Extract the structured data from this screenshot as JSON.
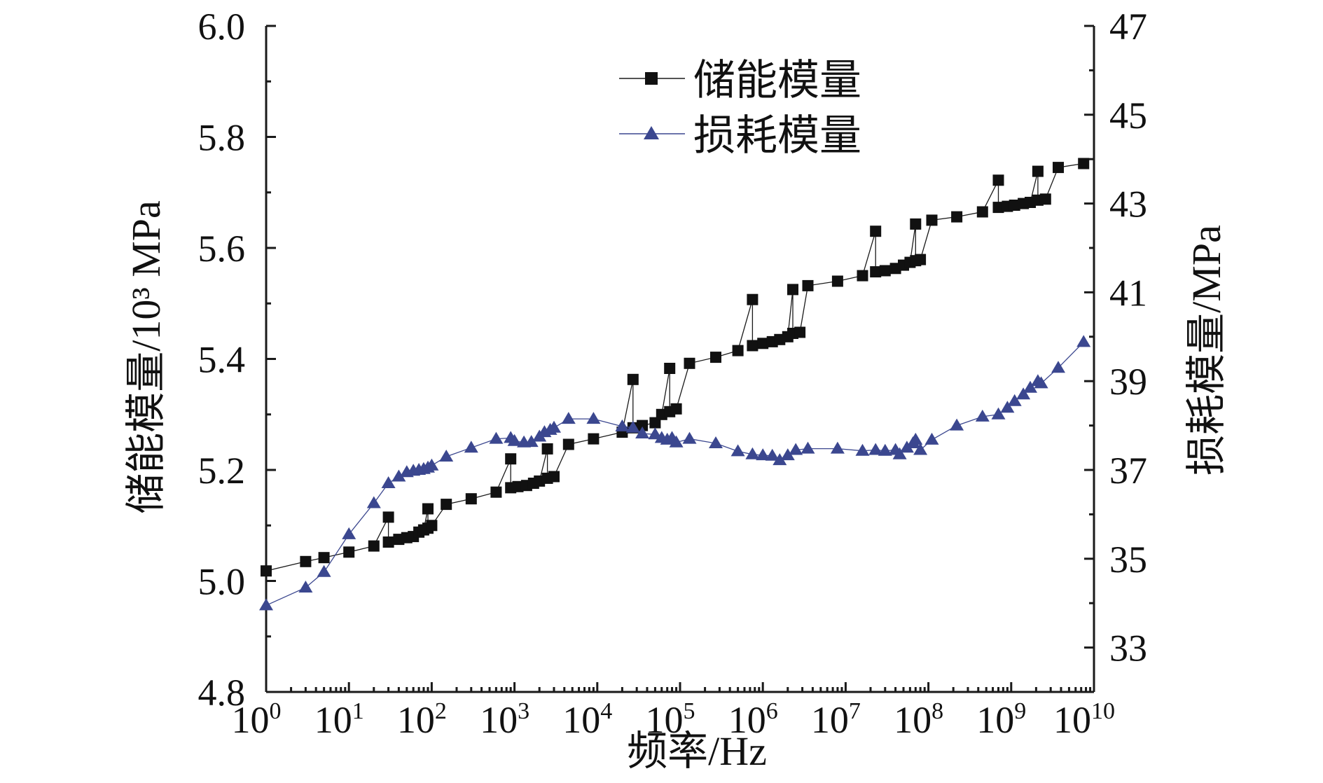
{
  "chart_data": {
    "type": "line",
    "xlabel": "频率/Hz",
    "ylabel": "储能模量/10³ MPa",
    "y2label": "损耗模量/MPa",
    "x_scale": "log",
    "xlim": [
      1,
      10000000000
    ],
    "ylim": [
      4.8,
      6.0
    ],
    "y2lim": [
      32,
      47
    ],
    "x_ticks": [
      {
        "base": "10",
        "exp": "0",
        "value": 1
      },
      {
        "base": "10",
        "exp": "1",
        "value": 10
      },
      {
        "base": "10",
        "exp": "2",
        "value": 100
      },
      {
        "base": "10",
        "exp": "3",
        "value": 1000
      },
      {
        "base": "10",
        "exp": "4",
        "value": 10000
      },
      {
        "base": "10",
        "exp": "5",
        "value": 100000
      },
      {
        "base": "10",
        "exp": "6",
        "value": 1000000
      },
      {
        "base": "10",
        "exp": "7",
        "value": 10000000
      },
      {
        "base": "10",
        "exp": "8",
        "value": 100000000
      },
      {
        "base": "10",
        "exp": "9",
        "value": 1000000000
      },
      {
        "base": "10",
        "exp": "10",
        "value": 10000000000
      }
    ],
    "y_ticks": [
      "4.8",
      "5.0",
      "5.2",
      "5.4",
      "5.6",
      "5.8",
      "6.0"
    ],
    "y2_ticks": [
      "33",
      "35",
      "37",
      "39",
      "41",
      "43",
      "45",
      "47"
    ],
    "legend_position": "top-center",
    "grid": false,
    "series": [
      {
        "name": "储能模量",
        "axis": "left",
        "marker": "square",
        "color": "#1a1a1a",
        "points": [
          [
            1,
            5.018
          ],
          [
            3,
            5.035
          ],
          [
            5,
            5.042
          ],
          [
            10,
            5.052
          ],
          [
            20,
            5.063
          ],
          [
            30,
            5.115
          ],
          [
            30,
            5.07
          ],
          [
            40,
            5.075
          ],
          [
            50,
            5.078
          ],
          [
            60,
            5.08
          ],
          [
            70,
            5.088
          ],
          [
            80,
            5.092
          ],
          [
            90,
            5.13
          ],
          [
            90,
            5.095
          ],
          [
            100,
            5.1
          ],
          [
            150,
            5.138
          ],
          [
            300,
            5.148
          ],
          [
            600,
            5.16
          ],
          [
            900,
            5.22
          ],
          [
            900,
            5.168
          ],
          [
            1100,
            5.17
          ],
          [
            1400,
            5.172
          ],
          [
            1700,
            5.176
          ],
          [
            2000,
            5.18
          ],
          [
            2500,
            5.238
          ],
          [
            2500,
            5.185
          ],
          [
            3000,
            5.188
          ],
          [
            4500,
            5.246
          ],
          [
            9000,
            5.256
          ],
          [
            20000,
            5.268
          ],
          [
            27000,
            5.363
          ],
          [
            27000,
            5.276
          ],
          [
            35000,
            5.28
          ],
          [
            50000,
            5.285
          ],
          [
            60000,
            5.3
          ],
          [
            75000,
            5.383
          ],
          [
            75000,
            5.305
          ],
          [
            90000,
            5.31
          ],
          [
            130000,
            5.392
          ],
          [
            270000,
            5.403
          ],
          [
            500000,
            5.415
          ],
          [
            750000,
            5.507
          ],
          [
            750000,
            5.424
          ],
          [
            1000000,
            5.428
          ],
          [
            1300000,
            5.431
          ],
          [
            1600000,
            5.435
          ],
          [
            2000000,
            5.44
          ],
          [
            2300000,
            5.525
          ],
          [
            2300000,
            5.446
          ],
          [
            2800000,
            5.448
          ],
          [
            3500000,
            5.532
          ],
          [
            8000000,
            5.54
          ],
          [
            16000000,
            5.55
          ],
          [
            23000000,
            5.63
          ],
          [
            23000000,
            5.557
          ],
          [
            30000000,
            5.559
          ],
          [
            40000000,
            5.563
          ],
          [
            50000000,
            5.569
          ],
          [
            60000000,
            5.574
          ],
          [
            70000000,
            5.643
          ],
          [
            70000000,
            5.577
          ],
          [
            80000000,
            5.579
          ],
          [
            110000000,
            5.65
          ],
          [
            220000000,
            5.656
          ],
          [
            450000000,
            5.665
          ],
          [
            700000000,
            5.722
          ],
          [
            700000000,
            5.673
          ],
          [
            900000000,
            5.675
          ],
          [
            1100000000,
            5.677
          ],
          [
            1400000000,
            5.68
          ],
          [
            1700000000,
            5.682
          ],
          [
            2100000000,
            5.738
          ],
          [
            2100000000,
            5.686
          ],
          [
            2600000000,
            5.688
          ],
          [
            3700000000,
            5.745
          ],
          [
            7500000000,
            5.752
          ]
        ]
      },
      {
        "name": "损耗模量",
        "axis": "right",
        "marker": "triangle",
        "color": "#3b478f",
        "points": [
          [
            1,
            33.95
          ],
          [
            3,
            34.35
          ],
          [
            5,
            34.7
          ],
          [
            10,
            35.55
          ],
          [
            20,
            36.25
          ],
          [
            30,
            36.7
          ],
          [
            40,
            36.85
          ],
          [
            50,
            36.95
          ],
          [
            60,
            36.98
          ],
          [
            70,
            37.0
          ],
          [
            80,
            37.02
          ],
          [
            90,
            37.05
          ],
          [
            100,
            37.1
          ],
          [
            150,
            37.3
          ],
          [
            300,
            37.5
          ],
          [
            600,
            37.7
          ],
          [
            900,
            37.72
          ],
          [
            1000,
            37.65
          ],
          [
            1300,
            37.62
          ],
          [
            1600,
            37.63
          ],
          [
            2000,
            37.75
          ],
          [
            2300,
            37.85
          ],
          [
            2700,
            37.9
          ],
          [
            3000,
            37.95
          ],
          [
            4500,
            38.15
          ],
          [
            9000,
            38.15
          ],
          [
            20000,
            37.98
          ],
          [
            27000,
            37.95
          ],
          [
            35000,
            37.82
          ],
          [
            50000,
            37.8
          ],
          [
            60000,
            37.72
          ],
          [
            70000,
            37.68
          ],
          [
            80000,
            37.72
          ],
          [
            90000,
            37.62
          ],
          [
            130000,
            37.7
          ],
          [
            270000,
            37.6
          ],
          [
            500000,
            37.42
          ],
          [
            750000,
            37.35
          ],
          [
            1000000,
            37.33
          ],
          [
            1300000,
            37.32
          ],
          [
            1600000,
            37.22
          ],
          [
            2000000,
            37.33
          ],
          [
            2500000,
            37.45
          ],
          [
            3500000,
            37.48
          ],
          [
            8000000,
            37.48
          ],
          [
            16000000,
            37.43
          ],
          [
            23000000,
            37.45
          ],
          [
            30000000,
            37.43
          ],
          [
            40000000,
            37.45
          ],
          [
            45000000,
            37.35
          ],
          [
            55000000,
            37.5
          ],
          [
            65000000,
            37.6
          ],
          [
            70000000,
            37.68
          ],
          [
            80000000,
            37.45
          ],
          [
            110000000,
            37.68
          ],
          [
            220000000,
            38.0
          ],
          [
            450000000,
            38.2
          ],
          [
            700000000,
            38.25
          ],
          [
            900000000,
            38.4
          ],
          [
            1100000000,
            38.55
          ],
          [
            1400000000,
            38.7
          ],
          [
            1700000000,
            38.85
          ],
          [
            2100000000,
            39.0
          ],
          [
            2300000000,
            38.95
          ],
          [
            3700000000,
            39.3
          ],
          [
            7500000000,
            39.88
          ]
        ]
      }
    ]
  }
}
